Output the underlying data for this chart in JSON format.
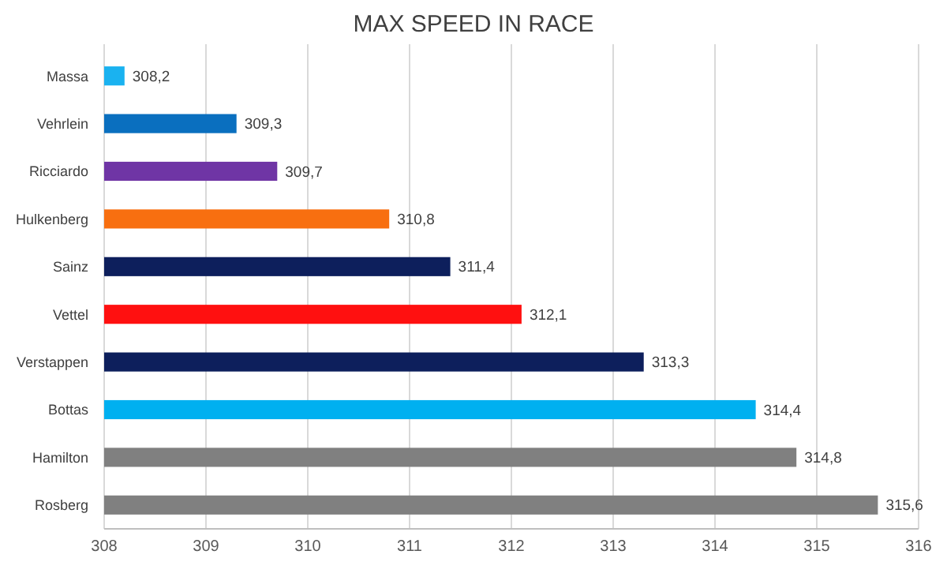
{
  "chart_data": {
    "type": "bar",
    "orientation": "horizontal",
    "title": "MAX SPEED IN RACE",
    "categories": [
      "Massa",
      "Vehrlein",
      "Ricciardo",
      "Hulkenberg",
      "Sainz",
      "Vettel",
      "Verstappen",
      "Bottas",
      "Hamilton",
      "Rosberg"
    ],
    "values": [
      308.2,
      309.3,
      309.7,
      310.8,
      311.4,
      312.1,
      313.3,
      314.4,
      314.8,
      315.6
    ],
    "value_labels": [
      "308,2",
      "309,3",
      "309,7",
      "310,8",
      "311,4",
      "312,1",
      "313,3",
      "314,4",
      "314,8",
      "315,6"
    ],
    "colors": [
      "#1ab2f0",
      "#0a6fbf",
      "#6f35a5",
      "#f86f10",
      "#0d1f5c",
      "#ff1010",
      "#0d1f5c",
      "#00b0f0",
      "#808080",
      "#808080"
    ],
    "xlim": [
      308,
      316
    ],
    "xticks": [
      308,
      309,
      310,
      311,
      312,
      313,
      314,
      315,
      316
    ],
    "grid": "x"
  }
}
